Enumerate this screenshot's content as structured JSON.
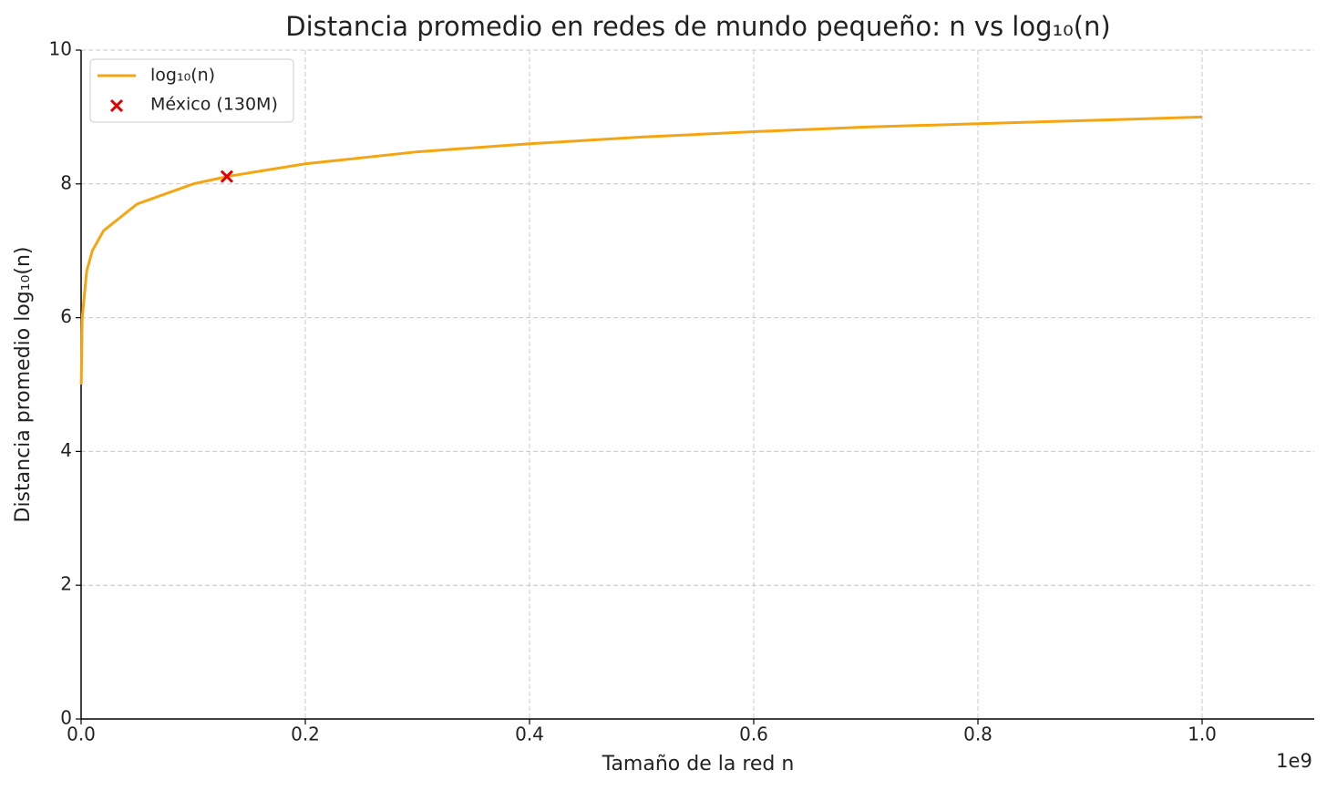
{
  "chart_data": {
    "type": "line",
    "title": "Distancia promedio en redes de mundo pequeño: n vs log₁₀(n)",
    "x_label": "Tamaño de la red n",
    "y_label": "Distancia promedio log₁₀(n)",
    "x_offset_label": "1e9",
    "xlim": [
      0,
      1100000000
    ],
    "ylim": [
      0,
      10
    ],
    "xticks": [
      {
        "value": 0,
        "label": "0.0"
      },
      {
        "value": 200000000,
        "label": "0.2"
      },
      {
        "value": 400000000,
        "label": "0.4"
      },
      {
        "value": 600000000,
        "label": "0.6"
      },
      {
        "value": 800000000,
        "label": "0.8"
      },
      {
        "value": 1000000000,
        "label": "1.0"
      }
    ],
    "yticks": [
      0,
      2,
      4,
      6,
      8,
      10
    ],
    "grid": true,
    "legend": "upper left",
    "series": [
      {
        "name": "log₁₀(n)",
        "type": "line",
        "color": "#f5a511",
        "x": [
          100000,
          1000000,
          5000000,
          10000000,
          20000000,
          50000000,
          100000000,
          130000000,
          200000000,
          300000000,
          400000000,
          500000000,
          600000000,
          700000000,
          800000000,
          900000000,
          1000000000
        ],
        "values": [
          5,
          6,
          6.7,
          7,
          7.3,
          7.7,
          8,
          8.11,
          8.3,
          8.48,
          8.6,
          8.7,
          8.78,
          8.85,
          8.9,
          8.95,
          9
        ]
      },
      {
        "name": "México (130M)",
        "type": "scatter",
        "color": "#e00000",
        "x": [
          130000000
        ],
        "values": [
          8.11
        ]
      }
    ]
  }
}
